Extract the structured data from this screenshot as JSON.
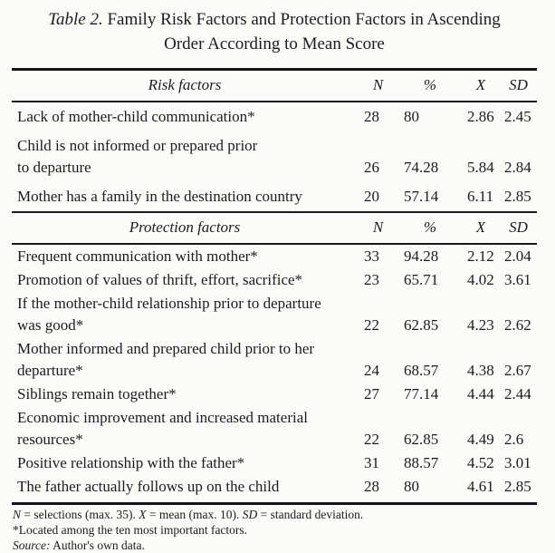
{
  "page": {
    "title": {
      "tag": "Table 2.",
      "rest": " Family Risk Factors and Protection Factors in Ascending Order According to Mean Score"
    }
  },
  "columns": {
    "n": "N",
    "pct": "%",
    "mean": "X",
    "sd": "SD"
  },
  "sections": [
    {
      "header": "Risk factors",
      "rows": [
        {
          "lines": [
            "Lack of mother-child communication*"
          ],
          "n": "28",
          "pct": "80",
          "mean": "2.86",
          "sd": "2.45"
        },
        {
          "lines": [
            "Child is not informed or prepared prior",
            "to departure"
          ],
          "n": "26",
          "pct": "74.28",
          "mean": "5.84",
          "sd": "2.84"
        },
        {
          "lines": [
            "Mother has a family in the destination country"
          ],
          "n": "20",
          "pct": "57.14",
          "mean": "6.11",
          "sd": "2.85"
        }
      ]
    },
    {
      "header": "Protection factors",
      "rows": [
        {
          "lines": [
            "Frequent communication with mother*"
          ],
          "n": "33",
          "pct": "94.28",
          "mean": "2.12",
          "sd": "2.04"
        },
        {
          "lines": [
            "Promotion of values of thrift, effort, sacrifice*"
          ],
          "n": "23",
          "pct": "65.71",
          "mean": "4.02",
          "sd": "3.61"
        },
        {
          "lines": [
            "If the mother-child relationship prior to departure",
            "was good*"
          ],
          "n": "22",
          "pct": "62.85",
          "mean": "4.23",
          "sd": "2.62"
        },
        {
          "lines": [
            "Mother informed and prepared child prior to her",
            "departure*"
          ],
          "n": "24",
          "pct": "68.57",
          "mean": "4.38",
          "sd": "2.67"
        },
        {
          "lines": [
            "Siblings remain together*"
          ],
          "n": "27",
          "pct": "77.14",
          "mean": "4.44",
          "sd": "2.44"
        },
        {
          "lines": [
            "Economic improvement and increased material",
            "resources*"
          ],
          "n": "22",
          "pct": "62.85",
          "mean": "4.49",
          "sd": "2.6"
        },
        {
          "lines": [
            "Positive relationship with the father*"
          ],
          "n": "31",
          "pct": "88.57",
          "mean": "4.52",
          "sd": "3.01"
        },
        {
          "lines": [
            "The father actually follows up on the child"
          ],
          "n": "28",
          "pct": "80",
          "mean": "4.61",
          "sd": "2.85"
        }
      ]
    }
  ],
  "footnotes": {
    "line1": {
      "n": "N",
      "n_def": " = selections (max. 35). ",
      "x": "X",
      "x_def": " = mean (max. 10). ",
      "sd": "SD",
      "sd_def": " = standard deviation."
    },
    "line2": "*Located among the ten most important factors.",
    "line3": {
      "source": "Source:",
      "text": " Author's own data."
    }
  },
  "colors": {
    "text": "#1c1c1c",
    "background": "#fbfbf9",
    "rule": "#141414"
  }
}
